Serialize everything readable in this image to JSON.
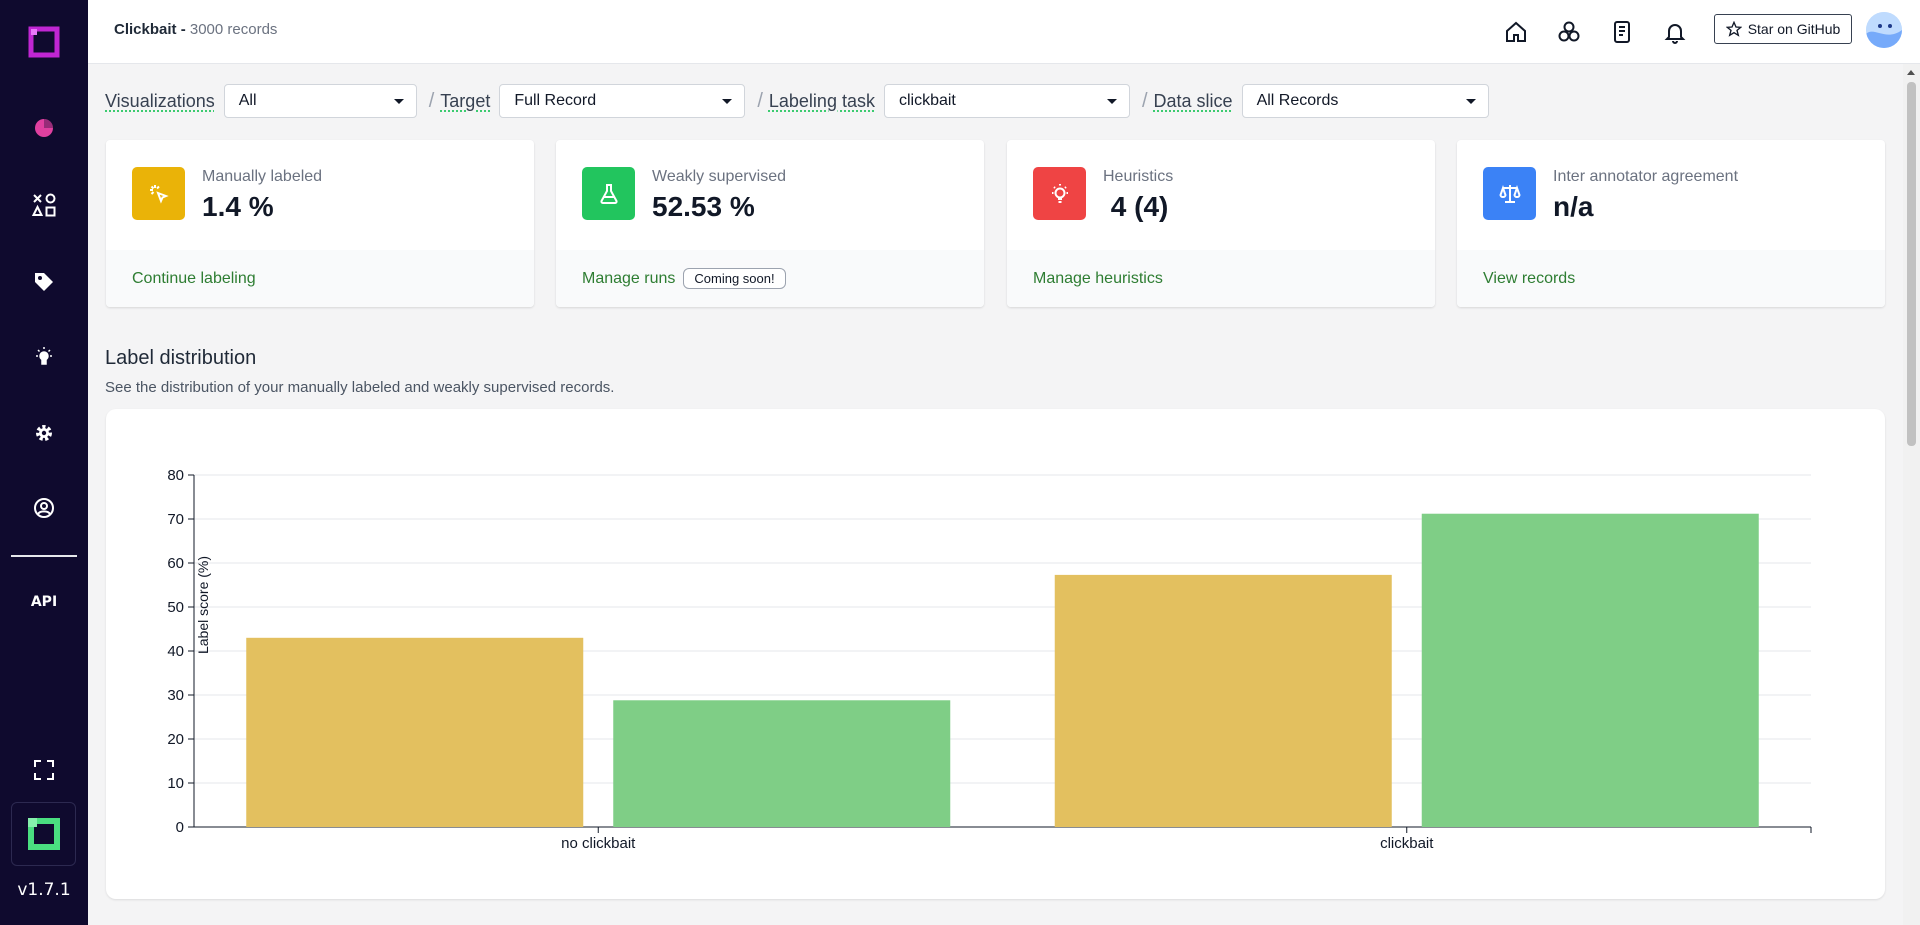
{
  "sidebar": {
    "api_label": "API",
    "version": "v1.7.1",
    "icons": [
      "logo-icon",
      "overview-icon",
      "data-browser-icon",
      "labeling-icon",
      "heuristics-icon",
      "settings-icon",
      "user-icon",
      "fullscreen-icon"
    ],
    "accent": "#e040a0",
    "logo_color": "#c026d3",
    "bottom_logo_color": "#4ade80"
  },
  "header": {
    "project_name": "Clickbait",
    "separator": " - ",
    "record_count": "3000 records",
    "star_label": "Star on GitHub",
    "icons": [
      "home-icon",
      "circles-icon",
      "document-icon",
      "bell-icon",
      "star-icon"
    ]
  },
  "filters": {
    "visualizations": {
      "label": "Visualizations",
      "value": "All"
    },
    "target": {
      "label": "Target",
      "value": "Full Record"
    },
    "labeling_task": {
      "label": "Labeling task",
      "value": "clickbait"
    },
    "data_slice": {
      "label": "Data slice",
      "value": "All Records"
    }
  },
  "cards": [
    {
      "label": "Manually labeled",
      "value": "1.4 %",
      "link": "Continue labeling",
      "color": "#eab308",
      "icon": "cursor-click-icon"
    },
    {
      "label": "Weakly supervised",
      "value": "52.53 %",
      "link": "Manage runs",
      "badge": "Coming soon!",
      "color": "#22c55e",
      "icon": "flask-icon"
    },
    {
      "label": "Heuristics",
      "value": " 4 (4)",
      "link": "Manage heuristics",
      "color": "#ef4444",
      "icon": "bulb-icon"
    },
    {
      "label": "Inter annotator agreement",
      "value": "n/a",
      "link": "View records",
      "color": "#3b82f6",
      "icon": "scale-icon"
    }
  ],
  "section": {
    "title": "Label distribution",
    "subtitle": "See the distribution of your manually labeled and weakly supervised records."
  },
  "chart_data": {
    "type": "bar",
    "categories": [
      "no clickbait",
      "clickbait"
    ],
    "series": [
      {
        "values": [
          43,
          57.3
        ],
        "color": "#e3c05f"
      },
      {
        "values": [
          28.8,
          71.2
        ],
        "color": "#7fce86"
      }
    ],
    "ylabel": "Label score (%)",
    "ylim": [
      0,
      80
    ],
    "yticks": [
      0,
      10,
      20,
      30,
      40,
      50,
      60,
      70,
      80
    ],
    "grid": true
  }
}
